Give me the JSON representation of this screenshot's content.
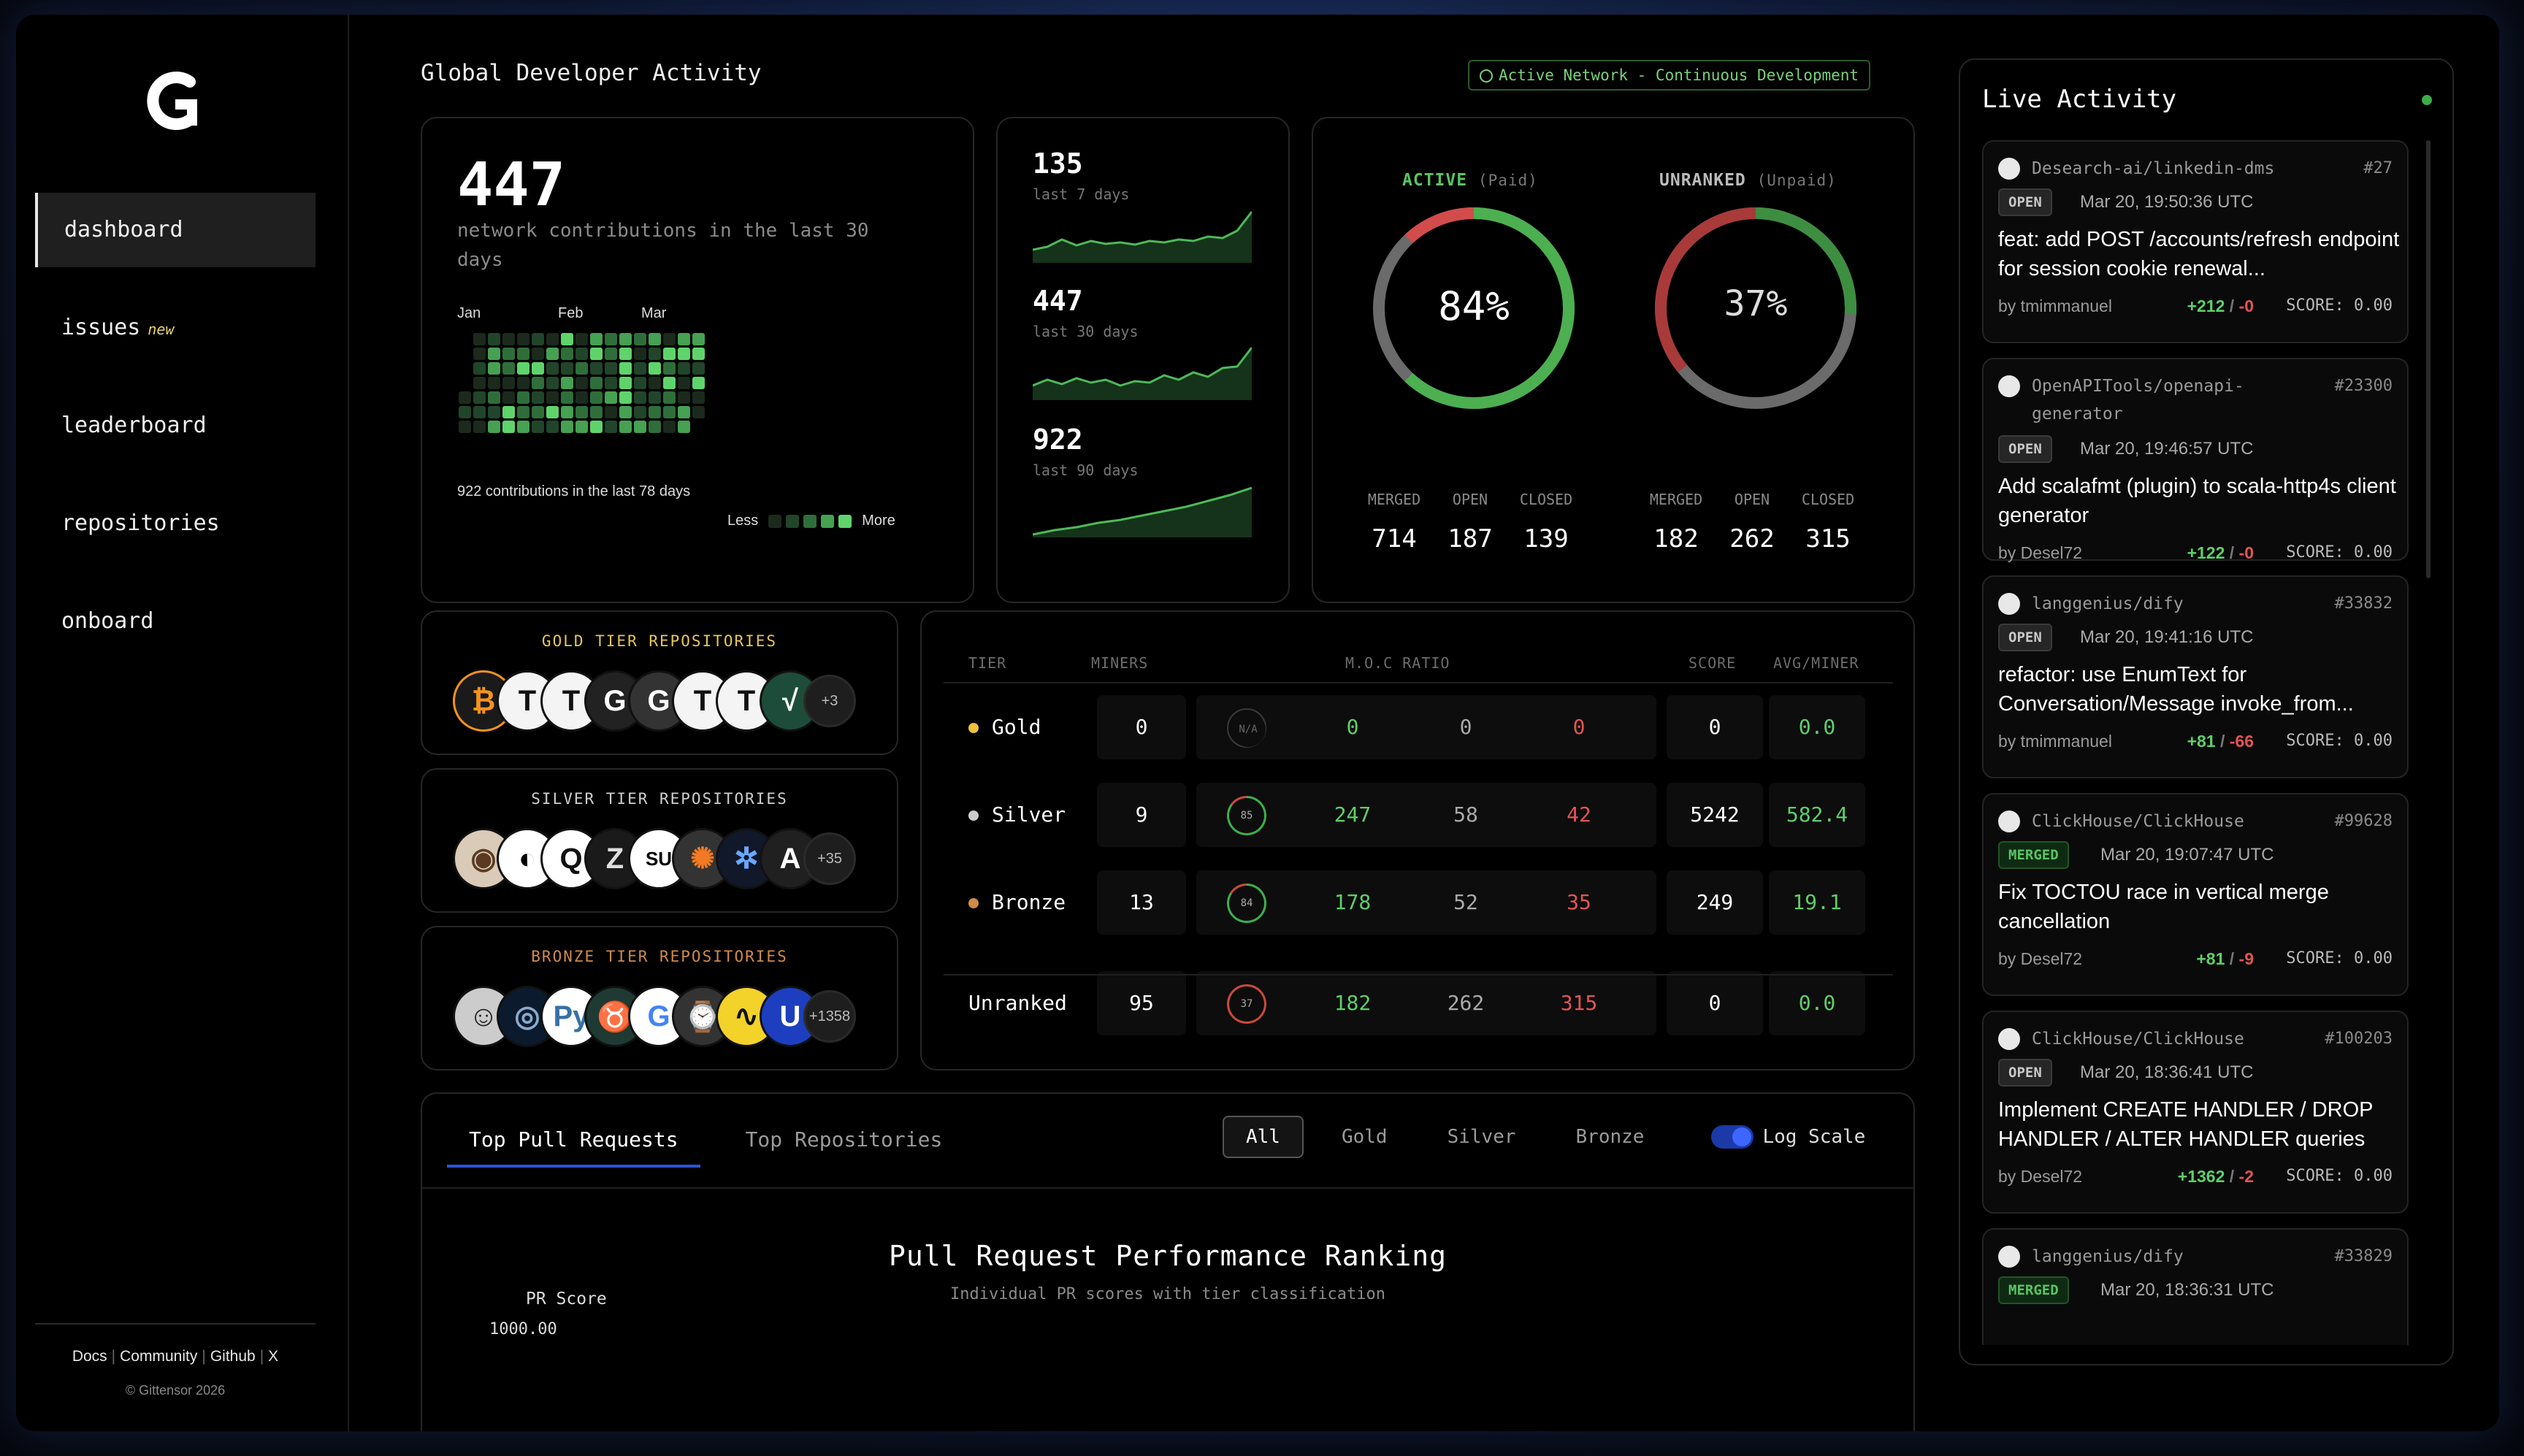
{
  "sidebar": {
    "nav": [
      {
        "label": "dashboard"
      },
      {
        "label": "issues",
        "badge": "new"
      },
      {
        "label": "leaderboard"
      },
      {
        "label": "repositories"
      },
      {
        "label": "onboard"
      }
    ],
    "footer_links": [
      "Docs",
      "Community",
      "Github",
      "X"
    ],
    "copyright": "© Gittensor 2026"
  },
  "header": {
    "title": "Global Developer Activity",
    "network_badge": "Active Network - Continuous Development"
  },
  "contributions": {
    "value": "447",
    "label": "network contributions in the last 30 days",
    "months": [
      "Jan",
      "Feb",
      "Mar"
    ],
    "summary": "922 contributions in the last 78 days",
    "legend_less": "Less",
    "legend_more": "More"
  },
  "sparklines": [
    {
      "value": "135",
      "label": "last 7 days"
    },
    {
      "value": "447",
      "label": "last 30 days"
    },
    {
      "value": "922",
      "label": "last 90 days"
    }
  ],
  "donuts": [
    {
      "title": "ACTIVE",
      "sub": "(Paid)",
      "percent": "84%",
      "pct_value": 84,
      "color": "#4caf50",
      "stats": [
        {
          "label": "MERGED",
          "value": "714"
        },
        {
          "label": "OPEN",
          "value": "187"
        },
        {
          "label": "CLOSED",
          "value": "139"
        }
      ]
    },
    {
      "title": "UNRANKED",
      "sub": "(Unpaid)",
      "percent": "37%",
      "pct_value": 37,
      "color": "#3e8e41",
      "stats": [
        {
          "label": "MERGED",
          "value": "182"
        },
        {
          "label": "OPEN",
          "value": "262"
        },
        {
          "label": "CLOSED",
          "value": "315"
        }
      ]
    }
  ],
  "tier_repos": [
    {
      "title": "GOLD TIER REPOSITORIES",
      "more": "+3",
      "color": "#e6c65c"
    },
    {
      "title": "SILVER TIER REPOSITORIES",
      "more": "+35",
      "color": "#cfcfcf"
    },
    {
      "title": "BRONZE TIER REPOSITORIES",
      "more": "+1358",
      "color": "#d08a4a"
    }
  ],
  "tier_table": {
    "headers": [
      "TIER",
      "MINERS",
      "M.O.C RATIO",
      "SCORE",
      "AVG/MINER"
    ],
    "rows": [
      {
        "name": "Gold",
        "dot": "#f0c040",
        "miners": "0",
        "ratio": "N/A",
        "m": "0",
        "o": "0",
        "c": "0",
        "score": "0",
        "avg": "0.0"
      },
      {
        "name": "Silver",
        "dot": "#cccccc",
        "miners": "9",
        "ratio": "85",
        "m": "247",
        "o": "58",
        "c": "42",
        "score": "5242",
        "avg": "582.4"
      },
      {
        "name": "Bronze",
        "dot": "#d08a4a",
        "miners": "13",
        "ratio": "84",
        "m": "178",
        "o": "52",
        "c": "35",
        "score": "249",
        "avg": "19.1"
      },
      {
        "name": "Unranked",
        "dot": "",
        "miners": "95",
        "ratio": "37",
        "m": "182",
        "o": "262",
        "c": "315",
        "score": "0",
        "avg": "0.0"
      }
    ]
  },
  "chart_panel": {
    "tabs": [
      "Top Pull Requests",
      "Top Repositories"
    ],
    "filters": [
      "All",
      "Gold",
      "Silver",
      "Bronze"
    ],
    "log_scale_label": "Log Scale",
    "log_scale_on": true,
    "title": "Pull Request Performance Ranking",
    "subtitle": "Individual PR scores with tier classification",
    "ylabel": "PR Score",
    "ytick_top": "1000.00"
  },
  "live": {
    "title": "Live Activity",
    "items": [
      {
        "repo": "Desearch-ai/linkedin-dms",
        "num": "#27",
        "status": "OPEN",
        "date": "Mar 20, 19:50:36 UTC",
        "msg": "feat: add POST /accounts/refresh endpoint for session cookie renewal...",
        "by": "by tmimmanuel",
        "add": "+212",
        "del": "-0",
        "score": "SCORE: 0.00"
      },
      {
        "repo": "OpenAPITools/openapi-generator",
        "num": "#23300",
        "status": "OPEN",
        "date": "Mar 20, 19:46:57 UTC",
        "msg": "Add scalafmt (plugin) to scala-http4s client generator",
        "by": "by Desel72",
        "add": "+122",
        "del": "-0",
        "score": "SCORE: 0.00"
      },
      {
        "repo": "langgenius/dify",
        "num": "#33832",
        "status": "OPEN",
        "date": "Mar 20, 19:41:16 UTC",
        "msg": "refactor: use EnumText for Conversation/Message invoke_from...",
        "by": "by tmimmanuel",
        "add": "+81",
        "del": "-66",
        "score": "SCORE: 0.00"
      },
      {
        "repo": "ClickHouse/ClickHouse",
        "num": "#99628",
        "status": "MERGED",
        "date": "Mar 20, 19:07:47 UTC",
        "msg": "Fix TOCTOU race in vertical merge cancellation",
        "by": "by Desel72",
        "add": "+81",
        "del": "-9",
        "score": "SCORE: 0.00"
      },
      {
        "repo": "ClickHouse/ClickHouse",
        "num": "#100203",
        "status": "OPEN",
        "date": "Mar 20, 18:36:41 UTC",
        "msg": "Implement CREATE HANDLER / DROP HANDLER / ALTER HANDLER queries",
        "by": "by Desel72",
        "add": "+1362",
        "del": "-2",
        "score": "SCORE: 0.00"
      },
      {
        "repo": "langgenius/dify",
        "num": "#33829",
        "status": "MERGED",
        "date": "Mar 20, 18:36:31 UTC"
      }
    ]
  }
}
